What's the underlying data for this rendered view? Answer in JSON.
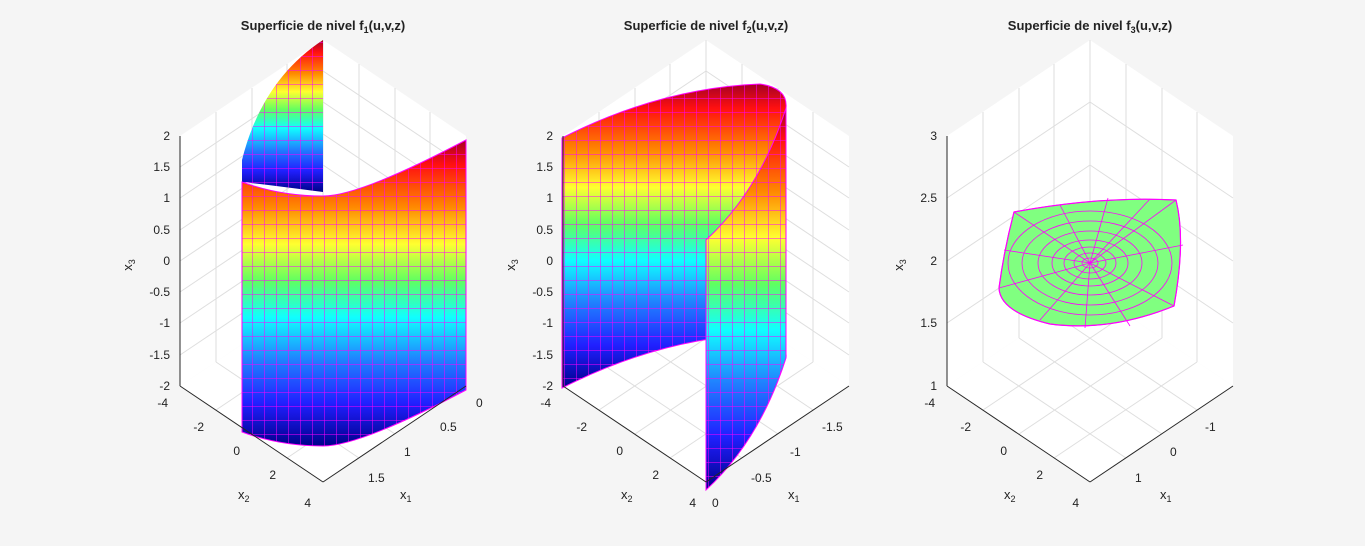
{
  "colors": {
    "background": "#f5f5f5",
    "mesh_edge": "#ff00ff",
    "plane_face": "#80ff80",
    "colormap": "hsv"
  },
  "chart_data": [
    {
      "type": "surface3d",
      "title_prefix": "Superficie  de  nivel  f",
      "title_sub": "1",
      "title_suffix": "(u,v,z)",
      "xlabel_base": "x",
      "xlabel_sub": "1",
      "ylabel_base": "x",
      "ylabel_sub": "2",
      "zlabel_base": "x",
      "zlabel_sub": "3",
      "xlim": [
        0,
        2
      ],
      "ylim": [
        -4,
        4
      ],
      "zlim": [
        -2,
        2
      ],
      "xticks": [
        "0",
        "0.5",
        "1",
        "1.5"
      ],
      "yticks": [
        "-4",
        "-2",
        "0",
        "2",
        "4"
      ],
      "zticks": [
        "2",
        "1.5",
        "1",
        "0.5",
        "0",
        "-0.5",
        "-1",
        "-1.5",
        "-2"
      ],
      "surface": "x1 = x2^2 / 8  (parabolic cylinder, x2 in [-4,4], x3 in [-2,2])",
      "colored_by": "x3"
    },
    {
      "type": "surface3d",
      "title_prefix": "Superficie  de  nivel  f",
      "title_sub": "2",
      "title_suffix": "(u,v,z)",
      "xlabel_base": "x",
      "xlabel_sub": "1",
      "ylabel_base": "x",
      "ylabel_sub": "2",
      "zlabel_base": "x",
      "zlabel_sub": "3",
      "xlim": [
        -2,
        0
      ],
      "ylim": [
        -4,
        4
      ],
      "zlim": [
        -2,
        2
      ],
      "xticks": [
        "0",
        "-0.5",
        "-1",
        "-1.5"
      ],
      "yticks": [
        "-4",
        "-2",
        "0",
        "2",
        "4"
      ],
      "zticks": [
        "2",
        "1.5",
        "1",
        "0.5",
        "0",
        "-0.5",
        "-1",
        "-1.5",
        "-2"
      ],
      "surface": "x1 = -x2^2 / 8  (parabolic cylinder, x2 in [-4,4], x3 in [-2,2])",
      "colored_by": "x3"
    },
    {
      "type": "surface3d",
      "title_prefix": "Superficie  de  nivel  f",
      "title_sub": "3",
      "title_suffix": "(u,v,z)",
      "xlabel_base": "x",
      "xlabel_sub": "1",
      "ylabel_base": "x",
      "ylabel_sub": "2",
      "zlabel_base": "x",
      "zlabel_sub": "3",
      "xlim": [
        -2,
        2
      ],
      "ylim": [
        -4,
        4
      ],
      "zlim": [
        1,
        3
      ],
      "xticks": [
        "1",
        "0",
        "-1"
      ],
      "yticks": [
        "-4",
        "-2",
        "0",
        "2",
        "4"
      ],
      "zticks": [
        "3",
        "2.5",
        "2",
        "1.5",
        "1"
      ],
      "surface": "plane x3 = 2, polar mesh",
      "colored_by": "constant"
    }
  ]
}
